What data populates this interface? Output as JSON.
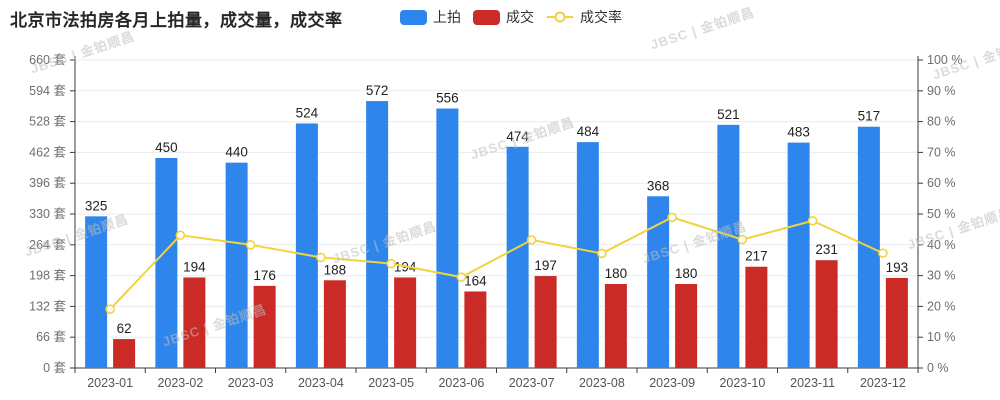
{
  "title": "北京市法拍房各月上拍量，成交量，成交率",
  "watermark": "JBSC | 金铂顺昌",
  "legend": {
    "items": [
      {
        "label": "上拍",
        "type": "bar",
        "color": "#2E86EC"
      },
      {
        "label": "成交",
        "type": "bar",
        "color": "#CB2B27"
      },
      {
        "label": "成交率",
        "type": "line",
        "color": "#F0D33F"
      }
    ]
  },
  "chart_data": {
    "type": "bar",
    "title": "北京市法拍房各月上拍量，成交量，成交率",
    "categories": [
      "2023-01",
      "2023-02",
      "2023-03",
      "2023-04",
      "2023-05",
      "2023-06",
      "2023-07",
      "2023-08",
      "2023-09",
      "2023-10",
      "2023-11",
      "2023-12"
    ],
    "series": [
      {
        "name": "上拍",
        "type": "bar",
        "axis": "left",
        "color": "#2E86EC",
        "values": [
          325,
          450,
          440,
          524,
          572,
          556,
          474,
          484,
          368,
          521,
          483,
          517
        ]
      },
      {
        "name": "成交",
        "type": "bar",
        "axis": "left",
        "color": "#CB2B27",
        "values": [
          62,
          194,
          176,
          188,
          194,
          164,
          197,
          180,
          180,
          217,
          231,
          193
        ]
      },
      {
        "name": "成交率",
        "type": "line",
        "axis": "right",
        "color": "#F0D33F",
        "unit": "%",
        "values": [
          19.1,
          43.1,
          40.0,
          35.9,
          33.9,
          29.5,
          41.6,
          37.2,
          48.9,
          41.7,
          47.8,
          37.3
        ]
      }
    ],
    "left_axis": {
      "min": 0,
      "max": 660,
      "step": 66,
      "unit": "套",
      "tick_labels": [
        "0 套",
        "66 套",
        "132 套",
        "198 套",
        "264 套",
        "330 套",
        "396 套",
        "462 套",
        "528 套",
        "594 套",
        "660 套"
      ]
    },
    "right_axis": {
      "min": 0,
      "max": 100,
      "step": 10,
      "unit": "%",
      "tick_labels": [
        "0 %",
        "10 %",
        "20 %",
        "30 %",
        "40 %",
        "50 %",
        "60 %",
        "70 %",
        "80 %",
        "90 %",
        "100 %"
      ]
    },
    "grid": true,
    "legend_position": "top",
    "value_labels_shown": true
  },
  "style": {
    "grid_color": "#ebebeb",
    "axis_color": "#3a3a3a",
    "axis_tick_label_color": "#6e6e6e",
    "x_tick_label_color": "#555555",
    "value_label_color": "#222222"
  }
}
